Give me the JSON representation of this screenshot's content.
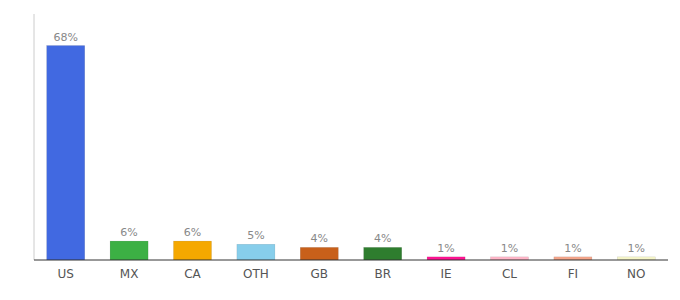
{
  "chart_data": {
    "type": "bar",
    "categories": [
      "US",
      "MX",
      "CA",
      "OTH",
      "GB",
      "BR",
      "IE",
      "CL",
      "FI",
      "NO"
    ],
    "values": [
      68,
      6,
      6,
      5,
      4,
      4,
      1,
      1,
      1,
      1
    ],
    "value_labels": [
      "68%",
      "6%",
      "6%",
      "5%",
      "4%",
      "4%",
      "1%",
      "1%",
      "1%",
      "1%"
    ],
    "colors": [
      "#4169e1",
      "#3cb044",
      "#f5a800",
      "#87ceeb",
      "#c8601a",
      "#2e7d2e",
      "#ff1493",
      "#ffb6c8",
      "#f4a58a",
      "#f5f5c8"
    ],
    "ylim": [
      0,
      78
    ],
    "data_labels": true,
    "tick_labels": "x"
  }
}
